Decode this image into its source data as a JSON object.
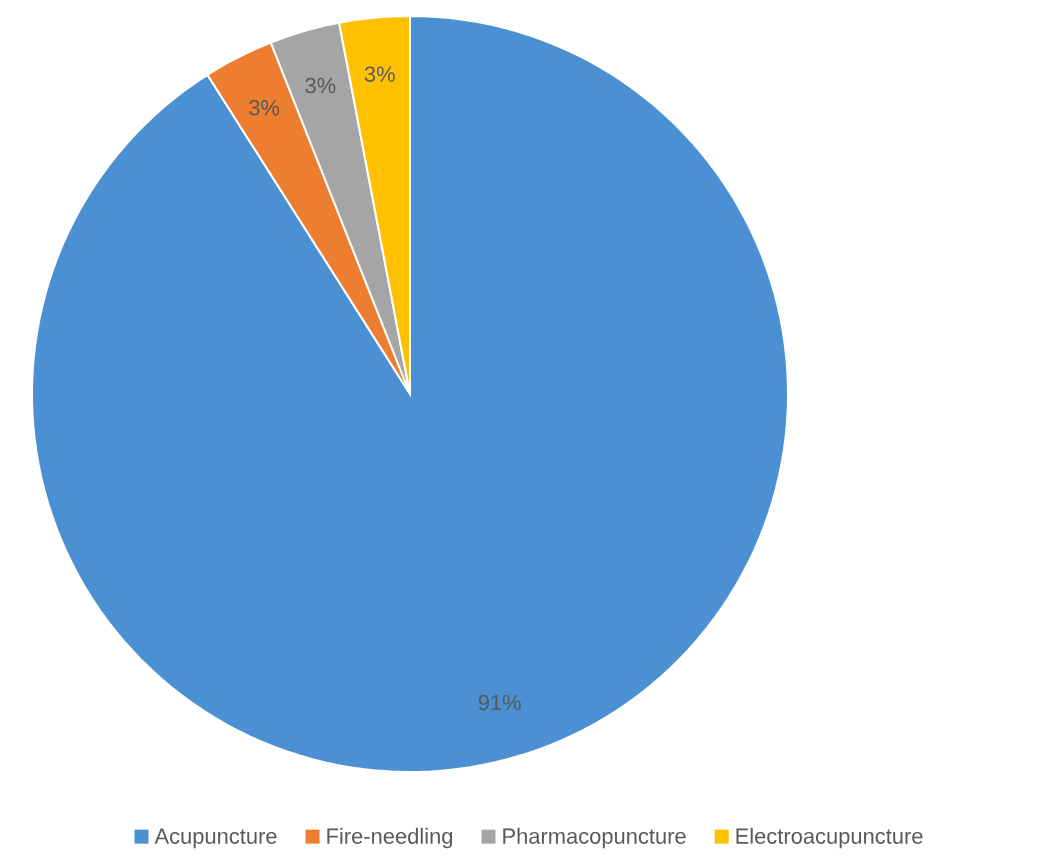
{
  "chart_data": {
    "type": "pie",
    "categories": [
      "Acupuncture",
      "Fire-needling",
      "Pharmacopuncture",
      "Electroacupuncture"
    ],
    "values": [
      91,
      3,
      3,
      3
    ],
    "value_labels": [
      "91%",
      "3%",
      "3%",
      "3%"
    ],
    "colors": [
      "#4a90d2",
      "#ed7d31",
      "#a5a5a5",
      "#ffc000"
    ],
    "legend": "bottom"
  }
}
